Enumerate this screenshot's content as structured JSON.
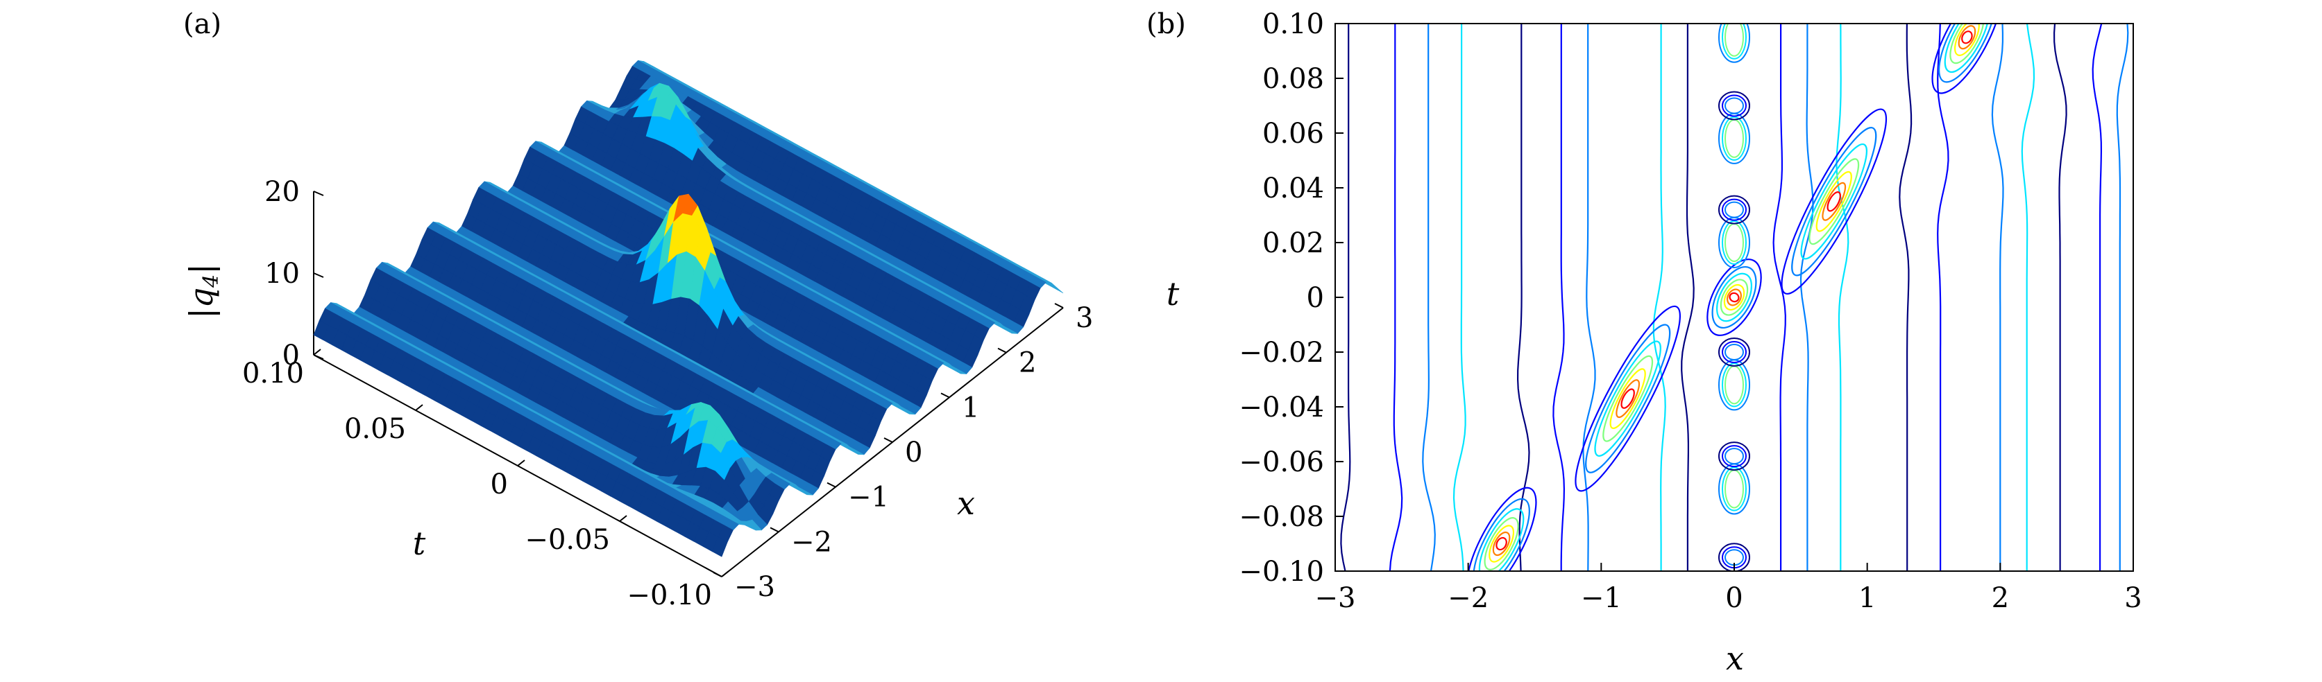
{
  "chart_data": [
    {
      "panel": "(a)",
      "type": "surface",
      "xlabel": "x",
      "ylabel": "t",
      "zlabel": "|q4|",
      "zlabel_parts": {
        "base": "|q",
        "sub": "4",
        "end": "|"
      },
      "xlim": [
        -3,
        3
      ],
      "ylim": [
        -0.1,
        0.1
      ],
      "zlim": [
        0,
        20
      ],
      "xticks": [
        "−3",
        "−2",
        "−1",
        "0",
        "1",
        "2",
        "3"
      ],
      "yticks": [
        "0.10",
        "0.05",
        "0",
        "−0.05",
        "−0.10"
      ],
      "zticks": [
        "0",
        "10",
        "20"
      ],
      "colormap": [
        "#00007f",
        "#0050ff",
        "#00b4ff",
        "#30d5c8",
        "#ffe600",
        "#ff6a00",
        "#c80000"
      ]
    },
    {
      "panel": "(b)",
      "type": "contour",
      "xlabel": "x",
      "ylabel": "t",
      "xlim": [
        -3,
        3
      ],
      "ylim": [
        -0.1,
        0.1
      ],
      "xticks": [
        "−3",
        "−2",
        "−1",
        "0",
        "1",
        "2",
        "3"
      ],
      "yticks": [
        "0.10",
        "0.08",
        "0.06",
        "0.04",
        "0.02",
        "0",
        "−0.02",
        "−0.04",
        "−0.06",
        "−0.08",
        "−0.10"
      ],
      "colormap": [
        "#00007f",
        "#0000ff",
        "#0080ff",
        "#00e5ff",
        "#7fff7f",
        "#ffff00",
        "#ff8000",
        "#ff0000"
      ]
    }
  ]
}
